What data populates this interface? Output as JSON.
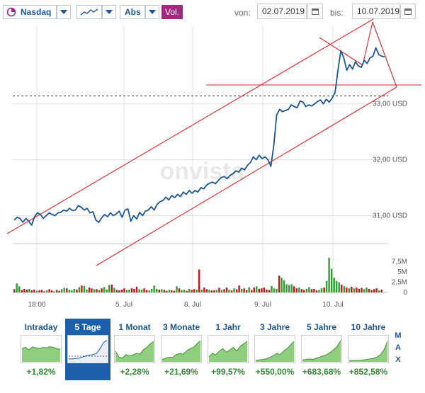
{
  "toolbar": {
    "exchange": "Nasdaq",
    "scale": "Abs",
    "volume_toggle": "Vol.",
    "from_label": "von:",
    "from_date": "02.07.2019",
    "to_label": "bis:",
    "to_date": "10.07.2019"
  },
  "watermark": "onvista",
  "chart_data": {
    "type": "line",
    "y_axis_labels": [
      "33,00 USD",
      "32,00 USD",
      "31,00 USD"
    ],
    "y_ticks": [
      33,
      32,
      31
    ],
    "ylim": [
      30.5,
      34.4
    ],
    "x_tick_labels": [
      "18:00",
      "5. Jul",
      "8. Jul",
      "9. Jul",
      "10. Jul"
    ],
    "reference_level": 33.14,
    "price_series": [
      30.92,
      30.97,
      30.95,
      30.88,
      30.95,
      30.9,
      30.83,
      30.98,
      31.05,
      31.02,
      30.95,
      31.0,
      31.05,
      31.02,
      31.0,
      31.05,
      31.06,
      31.1,
      31.08,
      31.13,
      31.09,
      31.1,
      31.18,
      31.15,
      31.1,
      31.13,
      31.05,
      31.07,
      30.92,
      30.88,
      30.96,
      31.02,
      30.98,
      31.05,
      31.0,
      31.03,
      31.08,
      30.97,
      31.1,
      31.12,
      30.9,
      31.0,
      30.94,
      31.06,
      31.0,
      31.08,
      31.1,
      31.16,
      31.1,
      31.2,
      31.25,
      31.27,
      31.33,
      31.28,
      31.36,
      31.32,
      31.38,
      31.34,
      31.42,
      31.38,
      31.45,
      31.4,
      31.45,
      31.42,
      31.5,
      31.48,
      31.55,
      31.58,
      31.6,
      31.57,
      31.63,
      31.68,
      31.7,
      31.66,
      31.72,
      31.75,
      31.8,
      31.78,
      31.85,
      31.82,
      31.9,
      31.95,
      32.05,
      32.0,
      32.08,
      32.02,
      32.05,
      32.0,
      31.88,
      32.25,
      32.8,
      32.9,
      32.86,
      32.88,
      32.9,
      32.98,
      32.95,
      32.93,
      33.05,
      33.03,
      32.95,
      32.98,
      32.96,
      33.0,
      33.04,
      33.07,
      33.0,
      33.08,
      33.03,
      33.1,
      33.2,
      33.6,
      33.95,
      33.82,
      33.6,
      33.7,
      33.62,
      33.75,
      33.68,
      33.65,
      33.78,
      33.72,
      33.82,
      33.85,
      34.0,
      33.88,
      33.85,
      33.84
    ],
    "volume_axis_labels": [
      "7,5M",
      "5M",
      "2,5M",
      "0"
    ],
    "volume_ticks": [
      7.5,
      5,
      2.5,
      0
    ],
    "volume_max": 9,
    "volume_up_color": "#2ca02c",
    "volume_down_color": "#c0161c",
    "volume_series": [
      [
        0.8,
        "d"
      ],
      [
        2.2,
        "u"
      ],
      [
        1.5,
        "u"
      ],
      [
        0.6,
        "d"
      ],
      [
        0.9,
        "d"
      ],
      [
        0.7,
        "d"
      ],
      [
        0.9,
        "u"
      ],
      [
        0.5,
        "d"
      ],
      [
        0.7,
        "d"
      ],
      [
        0.4,
        "u"
      ],
      [
        0.5,
        "d"
      ],
      [
        0.6,
        "d"
      ],
      [
        0.3,
        "d"
      ],
      [
        0.5,
        "u"
      ],
      [
        0.8,
        "d"
      ],
      [
        0.5,
        "d"
      ],
      [
        0.3,
        "u"
      ],
      [
        0.6,
        "d"
      ],
      [
        0.4,
        "d"
      ],
      [
        0.8,
        "u"
      ],
      [
        1.1,
        "u"
      ],
      [
        1.0,
        "d"
      ],
      [
        0.6,
        "u"
      ],
      [
        0.5,
        "u"
      ],
      [
        0.9,
        "u"
      ],
      [
        0.7,
        "d"
      ],
      [
        1.3,
        "u"
      ],
      [
        1.7,
        "d"
      ],
      [
        1.6,
        "u"
      ],
      [
        0.7,
        "u"
      ],
      [
        1.2,
        "d"
      ],
      [
        1.0,
        "d"
      ],
      [
        0.8,
        "u"
      ],
      [
        0.8,
        "d"
      ],
      [
        0.6,
        "u"
      ],
      [
        1.0,
        "d"
      ],
      [
        1.3,
        "u"
      ],
      [
        0.7,
        "u"
      ],
      [
        1.8,
        "u"
      ],
      [
        1.9,
        "d"
      ],
      [
        1.1,
        "u"
      ],
      [
        0.6,
        "d"
      ],
      [
        0.5,
        "d"
      ],
      [
        0.7,
        "d"
      ],
      [
        1.0,
        "d"
      ],
      [
        0.6,
        "u"
      ],
      [
        0.7,
        "u"
      ],
      [
        1.0,
        "d"
      ],
      [
        0.9,
        "d"
      ],
      [
        1.4,
        "d"
      ],
      [
        0.8,
        "u"
      ],
      [
        0.7,
        "u"
      ],
      [
        1.0,
        "d"
      ],
      [
        0.6,
        "d"
      ],
      [
        0.5,
        "u"
      ],
      [
        0.9,
        "u"
      ],
      [
        1.7,
        "u"
      ],
      [
        0.9,
        "u"
      ],
      [
        0.7,
        "d"
      ],
      [
        0.8,
        "u"
      ],
      [
        0.6,
        "d"
      ],
      [
        0.4,
        "d"
      ],
      [
        0.6,
        "u"
      ],
      [
        0.5,
        "d"
      ],
      [
        0.4,
        "d"
      ],
      [
        1.5,
        "u"
      ],
      [
        1.0,
        "d"
      ],
      [
        0.6,
        "u"
      ],
      [
        0.7,
        "u"
      ],
      [
        0.4,
        "d"
      ],
      [
        0.9,
        "u"
      ],
      [
        0.6,
        "d"
      ],
      [
        0.8,
        "d"
      ],
      [
        0.7,
        "u"
      ],
      [
        5.6,
        "d"
      ],
      [
        0.7,
        "u"
      ],
      [
        1.2,
        "d"
      ],
      [
        0.8,
        "d"
      ],
      [
        0.6,
        "u"
      ],
      [
        0.5,
        "d"
      ],
      [
        0.5,
        "d"
      ],
      [
        0.6,
        "u"
      ],
      [
        1.1,
        "d"
      ],
      [
        0.6,
        "u"
      ],
      [
        0.8,
        "d"
      ],
      [
        1.2,
        "d"
      ],
      [
        0.7,
        "u"
      ],
      [
        0.5,
        "d"
      ],
      [
        1.0,
        "u"
      ],
      [
        0.8,
        "d"
      ],
      [
        1.7,
        "d"
      ],
      [
        0.9,
        "u"
      ],
      [
        1.0,
        "d"
      ],
      [
        0.6,
        "d"
      ],
      [
        1.3,
        "u"
      ],
      [
        0.6,
        "d"
      ],
      [
        1.2,
        "d"
      ],
      [
        1.5,
        "u"
      ],
      [
        0.9,
        "d"
      ],
      [
        1.0,
        "d"
      ],
      [
        1.2,
        "d"
      ],
      [
        0.7,
        "d"
      ],
      [
        0.6,
        "d"
      ],
      [
        1.6,
        "u"
      ],
      [
        1.0,
        "u"
      ],
      [
        0.9,
        "u"
      ],
      [
        4.1,
        "d"
      ],
      [
        3.6,
        "u"
      ],
      [
        3.0,
        "u"
      ],
      [
        2.0,
        "u"
      ],
      [
        1.8,
        "u"
      ],
      [
        2.0,
        "u"
      ],
      [
        1.5,
        "d"
      ],
      [
        1.0,
        "d"
      ],
      [
        1.2,
        "u"
      ],
      [
        0.8,
        "d"
      ],
      [
        0.6,
        "d"
      ],
      [
        0.9,
        "u"
      ],
      [
        1.3,
        "u"
      ],
      [
        0.8,
        "d"
      ],
      [
        0.9,
        "d"
      ],
      [
        0.5,
        "d"
      ],
      [
        0.6,
        "u"
      ],
      [
        1.0,
        "u"
      ],
      [
        1.2,
        "d"
      ],
      [
        2.8,
        "u"
      ],
      [
        8.5,
        "u"
      ],
      [
        5.8,
        "u"
      ],
      [
        3.6,
        "u"
      ],
      [
        2.8,
        "u"
      ],
      [
        2.5,
        "u"
      ],
      [
        1.9,
        "d"
      ],
      [
        1.5,
        "u"
      ],
      [
        1.2,
        "d"
      ],
      [
        1.0,
        "u"
      ],
      [
        1.4,
        "d"
      ],
      [
        1.0,
        "u"
      ],
      [
        1.2,
        "d"
      ],
      [
        0.9,
        "d"
      ],
      [
        1.1,
        "d"
      ],
      [
        0.8,
        "u"
      ],
      [
        1.2,
        "u"
      ],
      [
        0.9,
        "d"
      ],
      [
        0.6,
        "d"
      ],
      [
        0.8,
        "d"
      ],
      [
        1.0,
        "d"
      ],
      [
        0.5,
        "u"
      ],
      [
        0.7,
        "d"
      ]
    ]
  },
  "periods": [
    {
      "label": "Intraday",
      "change": "+1,82%",
      "active": false
    },
    {
      "label": "5 Tage",
      "change": "",
      "active": true
    },
    {
      "label": "1 Monat",
      "change": "+2,28%",
      "active": false
    },
    {
      "label": "3 Monate",
      "change": "+21,69%",
      "active": false
    },
    {
      "label": "1 Jahr",
      "change": "+99,57%",
      "active": false
    },
    {
      "label": "3 Jahre",
      "change": "+550,00%",
      "active": false
    },
    {
      "label": "5 Jahre",
      "change": "+683,68%",
      "active": false
    },
    {
      "label": "10 Jahre",
      "change": "+852,58%",
      "active": false
    }
  ],
  "max_label": "MAX",
  "colors": {
    "price_line": "#1c5590",
    "trend_line": "#e0232a",
    "active_period": "#1c5faa",
    "positive": "#2e8b2e",
    "accent": "#a3267f"
  }
}
